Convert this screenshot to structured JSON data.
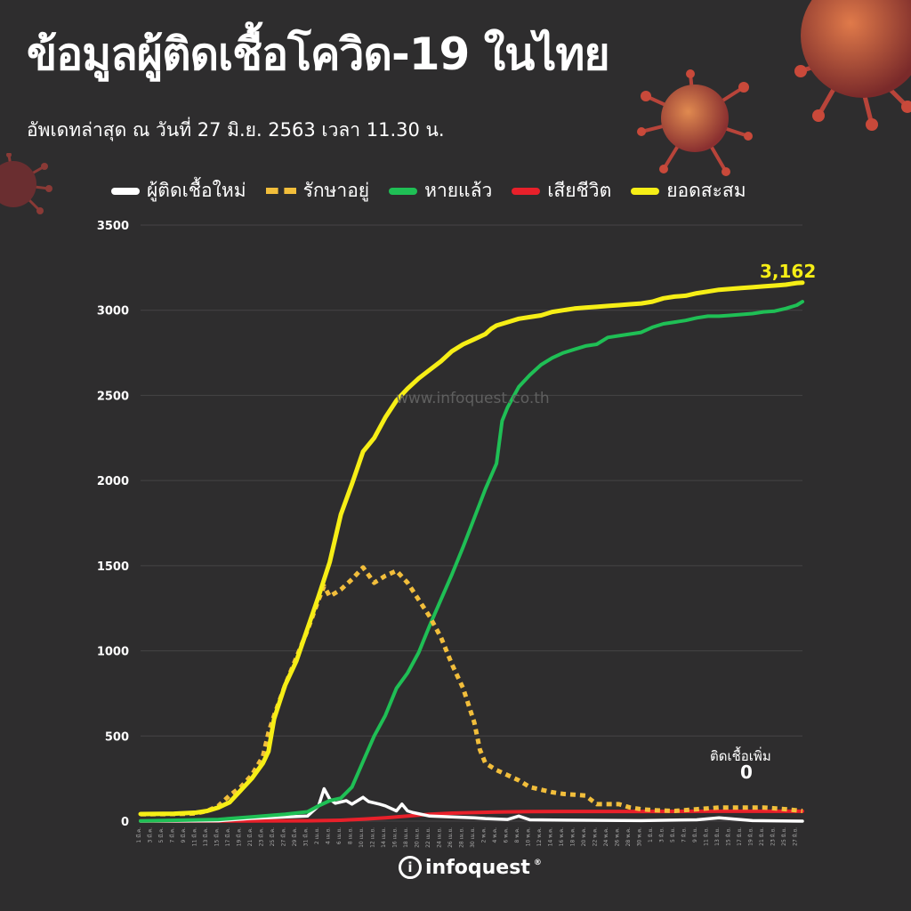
{
  "header": {
    "title": "ข้อมูลผู้ติดเชื้อโควิด-19 ในไทย",
    "subtitle": "อัพเดทล่าสุด ณ วันที่ 27 มิ.ย. 2563 เวลา 11.30 น."
  },
  "watermark": "www.infoquest.co.th",
  "annotation": {
    "label": "ติดเชื้อเพิ่ม",
    "value": "0"
  },
  "final_value_label": "3,162",
  "logo": {
    "text": "infoquest",
    "mark": "i",
    "sup": "®"
  },
  "colors": {
    "background": "#2e2d2e",
    "new_cases": "#ffffff",
    "in_treatment": "#f2be3b",
    "recovered": "#1fbf55",
    "deaths": "#e8202a",
    "cumulative": "#f6ee16",
    "virus": "#c9493a"
  },
  "chart_data": {
    "type": "line",
    "title": "ข้อมูลผู้ติดเชื้อโควิด-19 ในไทย",
    "xlabel": "",
    "ylabel": "",
    "ylim": [
      0,
      3500
    ],
    "y_ticks": [
      "0",
      "500",
      "1000",
      "1500",
      "2000",
      "2500",
      "3000",
      "3500"
    ],
    "grid": true,
    "legend_position": "top",
    "x_tick_labels": [
      "1 มี.ค.",
      "3 มี.ค.",
      "5 มี.ค.",
      "7 มี.ค.",
      "9 มี.ค.",
      "11 มี.ค.",
      "13 มี.ค.",
      "15 มี.ค.",
      "17 มี.ค.",
      "19 มี.ค.",
      "21 มี.ค.",
      "23 มี.ค.",
      "25 มี.ค.",
      "27 มี.ค.",
      "29 มี.ค.",
      "31 มี.ค.",
      "2 เม.ย.",
      "4 เม.ย.",
      "6 เม.ย.",
      "8 เม.ย.",
      "10 เม.ย.",
      "12 เม.ย.",
      "14 เม.ย.",
      "16 เม.ย.",
      "18 เม.ย.",
      "20 เม.ย.",
      "22 เม.ย.",
      "24 เม.ย.",
      "26 เม.ย.",
      "28 เม.ย.",
      "30 เม.ย.",
      "2 พ.ค.",
      "4 พ.ค.",
      "6 พ.ค.",
      "8 พ.ค.",
      "10 พ.ค.",
      "12 พ.ค.",
      "14 พ.ค.",
      "16 พ.ค.",
      "18 พ.ค.",
      "20 พ.ค.",
      "22 พ.ค.",
      "24 พ.ค.",
      "26 พ.ค.",
      "28 พ.ค.",
      "30 พ.ค.",
      "1 มิ.ย.",
      "3 มิ.ย.",
      "5 มิ.ย.",
      "7 มิ.ย.",
      "9 มิ.ย.",
      "11 มิ.ย.",
      "13 มิ.ย.",
      "15 มิ.ย.",
      "17 มิ.ย.",
      "19 มิ.ย.",
      "21 มิ.ย.",
      "23 มิ.ย.",
      "25 มิ.ย.",
      "27 มิ.ย."
    ],
    "series": [
      {
        "name": "ผู้ติดเชื้อใหม่",
        "key": "new_cases",
        "style": "solid",
        "points": [
          [
            0,
            0
          ],
          [
            14,
            2
          ],
          [
            20,
            16
          ],
          [
            30,
            30
          ],
          [
            32,
            90
          ],
          [
            33,
            190
          ],
          [
            34,
            130
          ],
          [
            35,
            105
          ],
          [
            37,
            120
          ],
          [
            38,
            100
          ],
          [
            40,
            140
          ],
          [
            41,
            115
          ],
          [
            43,
            100
          ],
          [
            44,
            90
          ],
          [
            46,
            60
          ],
          [
            47,
            100
          ],
          [
            48,
            60
          ],
          [
            49,
            50
          ],
          [
            52,
            30
          ],
          [
            56,
            25
          ],
          [
            60,
            20
          ],
          [
            62,
            15
          ],
          [
            66,
            10
          ],
          [
            68,
            30
          ],
          [
            70,
            8
          ],
          [
            80,
            5
          ],
          [
            90,
            3
          ],
          [
            100,
            8
          ],
          [
            104,
            20
          ],
          [
            110,
            3
          ],
          [
            119,
            0
          ]
        ]
      },
      {
        "name": "รักษาอยู่",
        "key": "in_treatment",
        "style": "dashed",
        "points": [
          [
            0,
            40
          ],
          [
            6,
            42
          ],
          [
            10,
            45
          ],
          [
            12,
            60
          ],
          [
            14,
            90
          ],
          [
            16,
            150
          ],
          [
            18,
            200
          ],
          [
            20,
            270
          ],
          [
            22,
            380
          ],
          [
            23,
            520
          ],
          [
            24,
            620
          ],
          [
            26,
            800
          ],
          [
            28,
            960
          ],
          [
            30,
            1120
          ],
          [
            32,
            1300
          ],
          [
            33,
            1380
          ],
          [
            34,
            1320
          ],
          [
            36,
            1360
          ],
          [
            38,
            1420
          ],
          [
            40,
            1490
          ],
          [
            42,
            1400
          ],
          [
            44,
            1440
          ],
          [
            46,
            1470
          ],
          [
            48,
            1400
          ],
          [
            50,
            1300
          ],
          [
            52,
            1200
          ],
          [
            54,
            1080
          ],
          [
            56,
            920
          ],
          [
            58,
            780
          ],
          [
            60,
            580
          ],
          [
            61,
            420
          ],
          [
            62,
            340
          ],
          [
            64,
            300
          ],
          [
            66,
            270
          ],
          [
            68,
            240
          ],
          [
            70,
            200
          ],
          [
            72,
            185
          ],
          [
            74,
            170
          ],
          [
            76,
            160
          ],
          [
            78,
            155
          ],
          [
            80,
            150
          ],
          [
            82,
            100
          ],
          [
            84,
            100
          ],
          [
            86,
            100
          ],
          [
            88,
            80
          ],
          [
            90,
            70
          ],
          [
            92,
            65
          ],
          [
            94,
            62
          ],
          [
            96,
            60
          ],
          [
            100,
            70
          ],
          [
            104,
            80
          ],
          [
            108,
            80
          ],
          [
            112,
            80
          ],
          [
            116,
            70
          ],
          [
            119,
            60
          ]
        ]
      },
      {
        "name": "หายแล้ว",
        "key": "recovered",
        "style": "solid",
        "points": [
          [
            0,
            1
          ],
          [
            14,
            10
          ],
          [
            20,
            25
          ],
          [
            26,
            40
          ],
          [
            30,
            55
          ],
          [
            32,
            90
          ],
          [
            34,
            120
          ],
          [
            36,
            135
          ],
          [
            38,
            200
          ],
          [
            40,
            350
          ],
          [
            42,
            500
          ],
          [
            44,
            620
          ],
          [
            46,
            780
          ],
          [
            48,
            870
          ],
          [
            50,
            990
          ],
          [
            52,
            1150
          ],
          [
            54,
            1300
          ],
          [
            56,
            1450
          ],
          [
            58,
            1610
          ],
          [
            60,
            1780
          ],
          [
            62,
            1950
          ],
          [
            64,
            2100
          ],
          [
            65,
            2350
          ],
          [
            66,
            2430
          ],
          [
            68,
            2550
          ],
          [
            70,
            2620
          ],
          [
            72,
            2680
          ],
          [
            74,
            2720
          ],
          [
            76,
            2750
          ],
          [
            78,
            2770
          ],
          [
            80,
            2790
          ],
          [
            82,
            2800
          ],
          [
            84,
            2840
          ],
          [
            86,
            2850
          ],
          [
            88,
            2860
          ],
          [
            90,
            2870
          ],
          [
            92,
            2900
          ],
          [
            94,
            2920
          ],
          [
            96,
            2930
          ],
          [
            98,
            2940
          ],
          [
            100,
            2955
          ],
          [
            102,
            2965
          ],
          [
            104,
            2965
          ],
          [
            106,
            2970
          ],
          [
            108,
            2975
          ],
          [
            110,
            2980
          ],
          [
            112,
            2990
          ],
          [
            114,
            2995
          ],
          [
            116,
            3010
          ],
          [
            118,
            3030
          ],
          [
            119,
            3050
          ]
        ]
      },
      {
        "name": "เสียชีวิต",
        "key": "deaths",
        "style": "solid",
        "points": [
          [
            0,
            1
          ],
          [
            20,
            1
          ],
          [
            30,
            2
          ],
          [
            36,
            5
          ],
          [
            40,
            12
          ],
          [
            44,
            20
          ],
          [
            48,
            30
          ],
          [
            52,
            40
          ],
          [
            56,
            47
          ],
          [
            60,
            50
          ],
          [
            64,
            54
          ],
          [
            70,
            56
          ],
          [
            80,
            57
          ],
          [
            90,
            57
          ],
          [
            100,
            58
          ],
          [
            119,
            58
          ]
        ]
      },
      {
        "name": "ยอดสะสม",
        "key": "cumulative",
        "style": "solid",
        "points": [
          [
            0,
            42
          ],
          [
            6,
            44
          ],
          [
            10,
            50
          ],
          [
            12,
            60
          ],
          [
            14,
            80
          ],
          [
            16,
            110
          ],
          [
            18,
            180
          ],
          [
            20,
            250
          ],
          [
            22,
            340
          ],
          [
            23,
            410
          ],
          [
            24,
            600
          ],
          [
            25,
            700
          ],
          [
            26,
            800
          ],
          [
            28,
            940
          ],
          [
            30,
            1130
          ],
          [
            32,
            1320
          ],
          [
            34,
            1520
          ],
          [
            36,
            1800
          ],
          [
            38,
            1980
          ],
          [
            40,
            2170
          ],
          [
            42,
            2250
          ],
          [
            44,
            2370
          ],
          [
            46,
            2470
          ],
          [
            48,
            2540
          ],
          [
            50,
            2600
          ],
          [
            52,
            2650
          ],
          [
            54,
            2700
          ],
          [
            56,
            2760
          ],
          [
            58,
            2800
          ],
          [
            60,
            2830
          ],
          [
            62,
            2860
          ],
          [
            63,
            2890
          ],
          [
            64,
            2910
          ],
          [
            66,
            2930
          ],
          [
            68,
            2950
          ],
          [
            70,
            2960
          ],
          [
            72,
            2970
          ],
          [
            74,
            2990
          ],
          [
            76,
            3000
          ],
          [
            78,
            3010
          ],
          [
            80,
            3015
          ],
          [
            82,
            3020
          ],
          [
            84,
            3025
          ],
          [
            86,
            3030
          ],
          [
            88,
            3035
          ],
          [
            90,
            3040
          ],
          [
            92,
            3050
          ],
          [
            94,
            3070
          ],
          [
            96,
            3080
          ],
          [
            98,
            3085
          ],
          [
            100,
            3100
          ],
          [
            102,
            3110
          ],
          [
            104,
            3120
          ],
          [
            106,
            3125
          ],
          [
            108,
            3130
          ],
          [
            110,
            3135
          ],
          [
            112,
            3140
          ],
          [
            114,
            3145
          ],
          [
            116,
            3150
          ],
          [
            118,
            3160
          ],
          [
            119,
            3162
          ]
        ]
      }
    ]
  }
}
